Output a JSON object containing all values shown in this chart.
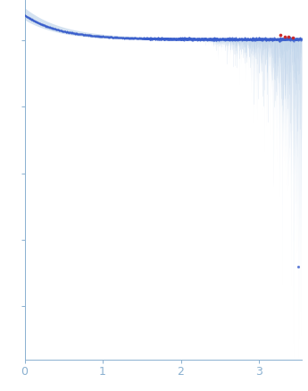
{
  "x_min": 0.0,
  "x_max": 3.55,
  "y_min": -120,
  "y_max": 15,
  "background_color": "#ffffff",
  "data_color": "#3a5fcd",
  "error_band_color": "#b8cfe8",
  "error_band_alpha": 0.6,
  "outlier_color": "#cc2222",
  "tick_label_color": "#8ab0d0",
  "spine_color": "#8ab0d0",
  "x_ticks": [
    0,
    1,
    2,
    3
  ],
  "figsize": [
    3.45,
    4.37
  ],
  "dpi": 100
}
